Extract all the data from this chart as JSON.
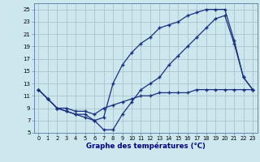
{
  "xlabel": "Graphe des températures (°C)",
  "background_color": "#cce8ee",
  "grid_color": "#aabbc8",
  "line_color": "#1a3080",
  "xlim": [
    -0.5,
    23.5
  ],
  "ylim": [
    5,
    26
  ],
  "xticks": [
    0,
    1,
    2,
    3,
    4,
    5,
    6,
    7,
    8,
    9,
    10,
    11,
    12,
    13,
    14,
    15,
    16,
    17,
    18,
    19,
    20,
    21,
    22,
    23
  ],
  "yticks": [
    5,
    7,
    9,
    11,
    13,
    15,
    17,
    19,
    21,
    23,
    25
  ],
  "line1_x": [
    0,
    1,
    2,
    3,
    4,
    5,
    6,
    7,
    8,
    9,
    10,
    11,
    12,
    13,
    14,
    15,
    16,
    17,
    18,
    19,
    20,
    21,
    22,
    23
  ],
  "line1_y": [
    12,
    10.5,
    9,
    9,
    8.5,
    8.5,
    8,
    9,
    9.5,
    10,
    10.5,
    11,
    11,
    11.5,
    11.5,
    11.5,
    11.5,
    12,
    12,
    12,
    12,
    12,
    12,
    12
  ],
  "line2_x": [
    0,
    1,
    2,
    3,
    4,
    5,
    6,
    7,
    8,
    9,
    10,
    11,
    12,
    13,
    14,
    15,
    16,
    17,
    18,
    19,
    20,
    21,
    22,
    23
  ],
  "line2_y": [
    12,
    10.5,
    9,
    8.5,
    8,
    8,
    7,
    7.5,
    13,
    16,
    18,
    19.5,
    20.5,
    22,
    22.5,
    23,
    24,
    24.5,
    25,
    25,
    25,
    20,
    14,
    12
  ],
  "line3_x": [
    0,
    1,
    2,
    3,
    4,
    5,
    6,
    7,
    8,
    9,
    10,
    11,
    12,
    13,
    14,
    15,
    16,
    17,
    18,
    19,
    20,
    21,
    22,
    23
  ],
  "line3_y": [
    12,
    10.5,
    9,
    8.5,
    8,
    7.5,
    7,
    5.5,
    5.5,
    8,
    10,
    12,
    13,
    14,
    16,
    17.5,
    19,
    20.5,
    22,
    23.5,
    24,
    19.5,
    14,
    12
  ]
}
